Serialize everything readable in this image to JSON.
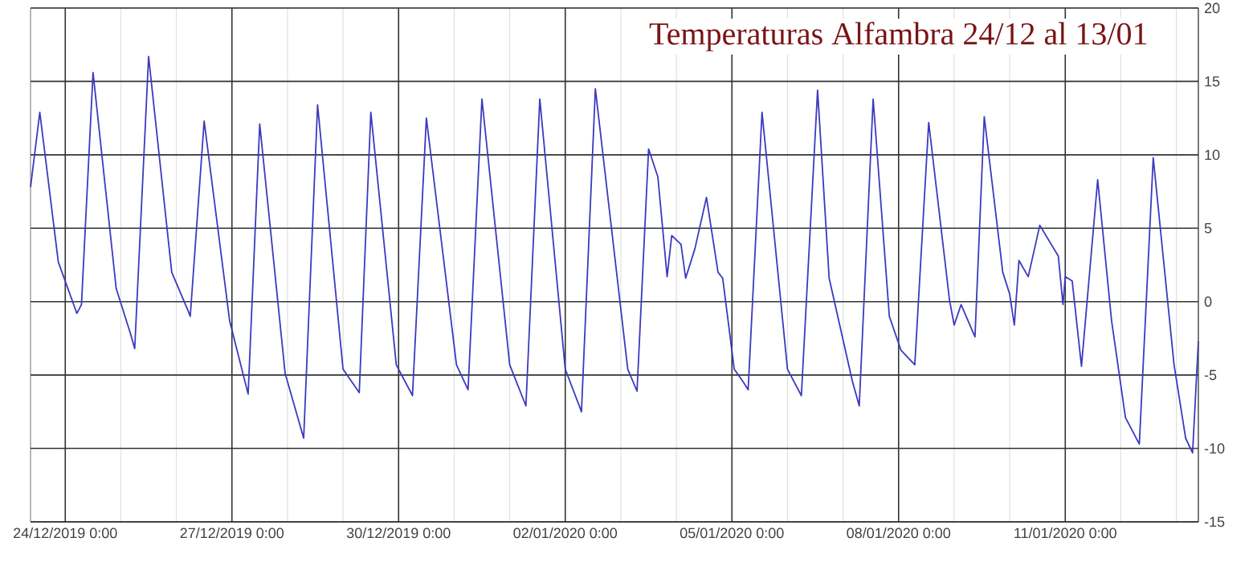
{
  "chart_data": {
    "type": "line",
    "title": "Temperaturas Alfambra 24/12 al 13/01",
    "x": [
      "2019-12-23T09:00",
      "2019-12-23T13:00",
      "2019-12-23T21:00",
      "2019-12-24T05:00",
      "2019-12-24T07:00",
      "2019-12-24T12:00",
      "2019-12-24T22:00",
      "2019-12-25T04:00",
      "2019-12-25T06:00",
      "2019-12-25T12:00",
      "2019-12-25T22:00",
      "2019-12-26T05:00",
      "2019-12-26T06:00",
      "2019-12-26T12:00",
      "2019-12-26T23:00",
      "2019-12-27T07:00",
      "2019-12-27T12:00",
      "2019-12-27T23:00",
      "2019-12-28T07:00",
      "2019-12-28T13:00",
      "2019-12-29T00:00",
      "2019-12-29T07:00",
      "2019-12-29T12:00",
      "2019-12-29T23:00",
      "2019-12-30T06:00",
      "2019-12-30T12:00",
      "2019-12-31T01:00",
      "2019-12-31T06:00",
      "2019-12-31T12:00",
      "2020-01-01T00:00",
      "2020-01-01T07:00",
      "2020-01-01T13:00",
      "2020-01-02T00:00",
      "2020-01-02T07:00",
      "2020-01-02T13:00",
      "2020-01-03T03:00",
      "2020-01-03T07:00",
      "2020-01-03T12:00",
      "2020-01-03T16:00",
      "2020-01-03T20:00",
      "2020-01-03T22:00",
      "2020-01-04T02:00",
      "2020-01-04T04:00",
      "2020-01-04T08:00",
      "2020-01-04T13:00",
      "2020-01-04T18:00",
      "2020-01-04T20:00",
      "2020-01-05T01:00",
      "2020-01-05T05:00",
      "2020-01-05T07:00",
      "2020-01-05T13:00",
      "2020-01-06T00:00",
      "2020-01-06T06:00",
      "2020-01-06T13:00",
      "2020-01-06T18:00",
      "2020-01-07T04:00",
      "2020-01-07T07:00",
      "2020-01-07T13:00",
      "2020-01-07T20:00",
      "2020-01-08T01:00",
      "2020-01-08T07:00",
      "2020-01-08T13:00",
      "2020-01-08T22:00",
      "2020-01-09T00:00",
      "2020-01-09T03:00",
      "2020-01-09T09:00",
      "2020-01-09T13:00",
      "2020-01-09T21:00",
      "2020-01-10T00:00",
      "2020-01-10T02:00",
      "2020-01-10T04:00",
      "2020-01-10T08:00",
      "2020-01-10T13:00",
      "2020-01-10T21:00",
      "2020-01-10T23:00",
      "2020-01-11T00:00",
      "2020-01-11T03:00",
      "2020-01-11T07:00",
      "2020-01-11T14:00",
      "2020-01-11T20:00",
      "2020-01-12T02:00",
      "2020-01-12T08:00",
      "2020-01-12T14:00",
      "2020-01-12T23:00",
      "2020-01-13T04:00",
      "2020-01-13T07:00",
      "2020-01-13T09:30"
    ],
    "series": [
      {
        "color": "#3a3ac0",
        "values": [
          7.8,
          12.9,
          2.7,
          -0.8,
          -0.2,
          15.6,
          0.9,
          -2.1,
          -3.2,
          16.7,
          2.0,
          -0.6,
          -1.0,
          12.3,
          -1.3,
          -6.3,
          12.1,
          -4.9,
          -9.3,
          13.4,
          -4.6,
          -6.2,
          12.9,
          -4.3,
          -6.4,
          12.5,
          -4.3,
          -6.0,
          13.8,
          -4.3,
          -7.1,
          13.8,
          -4.6,
          -7.5,
          14.5,
          -4.6,
          -6.1,
          10.4,
          8.5,
          1.7,
          4.5,
          3.9,
          1.6,
          3.6,
          7.1,
          2.0,
          1.6,
          -4.6,
          -5.5,
          -6.0,
          12.9,
          -4.6,
          -6.4,
          14.4,
          1.6,
          -5.4,
          -7.1,
          13.8,
          -1.0,
          -3.3,
          -4.3,
          12.2,
          0.1,
          -1.6,
          -0.2,
          -2.4,
          12.6,
          2.0,
          0.5,
          -1.6,
          2.8,
          1.7,
          5.2,
          3.1,
          -0.2,
          1.7,
          1.4,
          -4.4,
          8.3,
          -1.3,
          -7.9,
          -9.7,
          9.8,
          -4.3,
          -9.3,
          -10.3,
          -2.7
        ]
      }
    ],
    "xlim": [
      "2019-12-23T09:00",
      "2020-01-13T09:30"
    ],
    "xticks": [
      {
        "value": "2019-12-24T00:00",
        "label": "24/12/2019 0:00"
      },
      {
        "value": "2019-12-25T00:00",
        "label": null
      },
      {
        "value": "2019-12-26T00:00",
        "label": null
      },
      {
        "value": "2019-12-27T00:00",
        "label": "27/12/2019 0:00"
      },
      {
        "value": "2019-12-28T00:00",
        "label": null
      },
      {
        "value": "2019-12-29T00:00",
        "label": null
      },
      {
        "value": "2019-12-30T00:00",
        "label": "30/12/2019 0:00"
      },
      {
        "value": "2019-12-31T00:00",
        "label": null
      },
      {
        "value": "2020-01-01T00:00",
        "label": null
      },
      {
        "value": "2020-01-02T00:00",
        "label": "02/01/2020 0:00"
      },
      {
        "value": "2020-01-03T00:00",
        "label": null
      },
      {
        "value": "2020-01-04T00:00",
        "label": null
      },
      {
        "value": "2020-01-05T00:00",
        "label": "05/01/2020 0:00"
      },
      {
        "value": "2020-01-06T00:00",
        "label": null
      },
      {
        "value": "2020-01-07T00:00",
        "label": null
      },
      {
        "value": "2020-01-08T00:00",
        "label": "08/01/2020 0:00"
      },
      {
        "value": "2020-01-09T00:00",
        "label": null
      },
      {
        "value": "2020-01-10T00:00",
        "label": null
      },
      {
        "value": "2020-01-11T00:00",
        "label": "11/01/2020 0:00"
      },
      {
        "value": "2020-01-12T00:00",
        "label": null
      },
      {
        "value": "2020-01-13T00:00",
        "label": null
      }
    ],
    "ylim": [
      -15,
      20
    ],
    "yticks": [
      -15,
      -10,
      -5,
      0,
      5,
      10,
      15,
      20
    ],
    "grid": true,
    "line_style": "solid",
    "marker": "none"
  }
}
